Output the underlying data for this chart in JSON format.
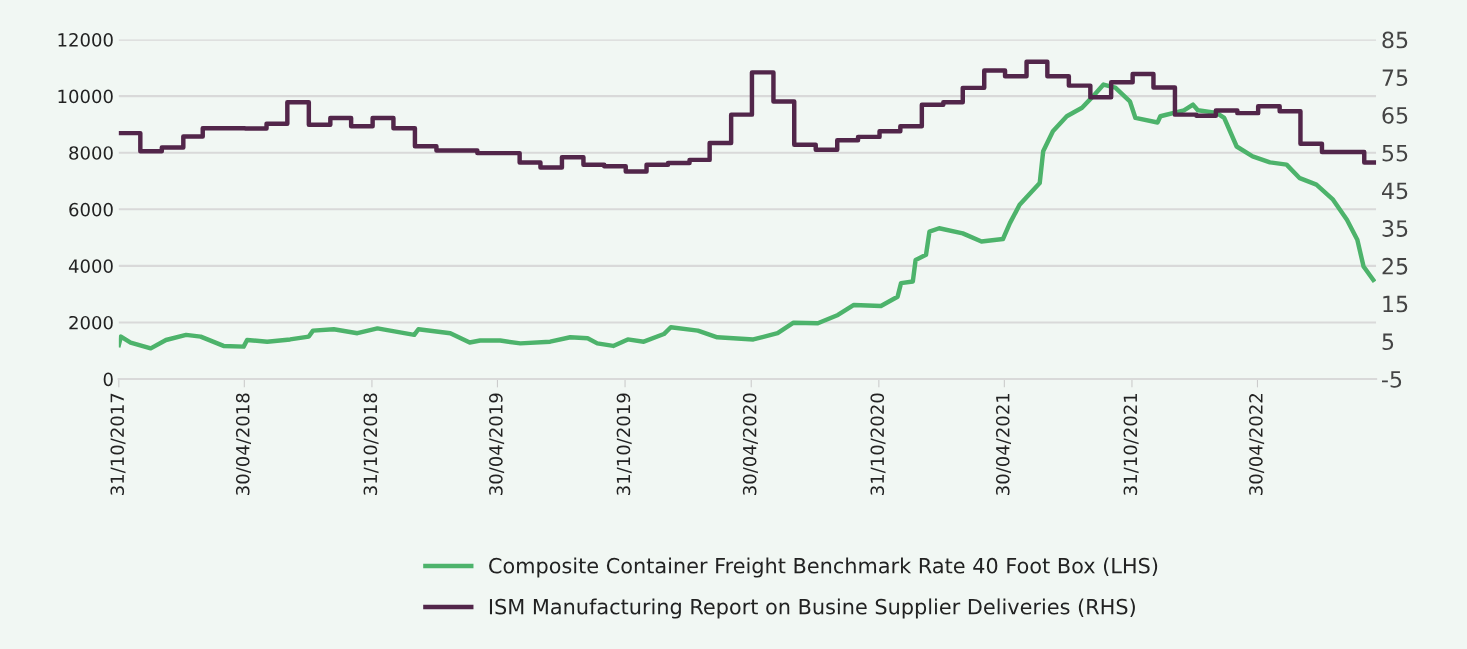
{
  "chart_data": {
    "type": "line",
    "xlim": [
      "2017-10-31",
      "2022-10-18"
    ],
    "xticks": [
      {
        "value": "2017-10-31",
        "label": "31/10/2017"
      },
      {
        "value": "2018-04-30",
        "label": "30/04/2018"
      },
      {
        "value": "2018-10-31",
        "label": "31/10/2018"
      },
      {
        "value": "2019-04-30",
        "label": "30/04/2019"
      },
      {
        "value": "2019-10-31",
        "label": "31/10/2019"
      },
      {
        "value": "2020-04-30",
        "label": "30/04/2020"
      },
      {
        "value": "2020-10-31",
        "label": "31/10/2020"
      },
      {
        "value": "2021-04-30",
        "label": "30/04/2021"
      },
      {
        "value": "2021-10-31",
        "label": "31/10/2021"
      },
      {
        "value": "2022-04-30",
        "label": "30/04/2022"
      }
    ],
    "ylim": [
      0,
      12000
    ],
    "yticks": [
      0,
      2000,
      4000,
      6000,
      8000,
      10000,
      12000
    ],
    "y2lim": [
      -5,
      85
    ],
    "y2ticks": [
      -5,
      5,
      15,
      25,
      35,
      45,
      55,
      65,
      75,
      85
    ],
    "grid": "y",
    "legend": "bottom",
    "series": [
      {
        "name": "Composite Container Freight Benchmark Rate 40 Foot Box (LHS)",
        "color": "#4db36b",
        "x": [
          "2017-10-31",
          "2017-11-03",
          "2017-11-17",
          "2017-12-16",
          "2018-01-07",
          "2018-02-05",
          "2018-02-26",
          "2018-03-31",
          "2018-04-29",
          "2018-05-04",
          "2018-06-02",
          "2018-07-05",
          "2018-08-01",
          "2018-08-07",
          "2018-09-06",
          "2018-10-10",
          "2018-11-08",
          "2018-12-31",
          "2019-01-06",
          "2019-02-21",
          "2019-03-21",
          "2019-04-05",
          "2019-05-04",
          "2019-06-02",
          "2019-07-15",
          "2019-08-13",
          "2019-09-07",
          "2019-09-21",
          "2019-10-14",
          "2019-11-04",
          "2019-11-27",
          "2019-12-26",
          "2020-01-05",
          "2020-02-13",
          "2020-03-12",
          "2020-05-03",
          "2020-06-07",
          "2020-06-30",
          "2020-08-04",
          "2020-09-02",
          "2020-09-25",
          "2020-11-03",
          "2020-11-27",
          "2020-12-02",
          "2020-12-19",
          "2020-12-23",
          "2021-01-07",
          "2021-01-12",
          "2021-01-26",
          "2021-03-01",
          "2021-03-28",
          "2021-04-28",
          "2021-05-08",
          "2021-05-22",
          "2021-06-20",
          "2021-06-25",
          "2021-07-09",
          "2021-07-29",
          "2021-08-20",
          "2021-09-05",
          "2021-09-20",
          "2021-10-07",
          "2021-10-28",
          "2021-11-05",
          "2021-12-07",
          "2021-12-11",
          "2022-01-14",
          "2022-01-27",
          "2022-02-03",
          "2022-03-02",
          "2022-03-13",
          "2022-03-31",
          "2022-04-23",
          "2022-05-18",
          "2022-06-11",
          "2022-06-30",
          "2022-07-24",
          "2022-08-17",
          "2022-09-06",
          "2022-09-21",
          "2022-09-30",
          "2022-10-14"
        ],
        "values": [
          1200,
          1500,
          1290,
          1085,
          1380,
          1560,
          1500,
          1170,
          1145,
          1380,
          1320,
          1400,
          1500,
          1710,
          1760,
          1620,
          1790,
          1560,
          1760,
          1620,
          1290,
          1360,
          1360,
          1260,
          1320,
          1475,
          1440,
          1260,
          1170,
          1400,
          1320,
          1590,
          1830,
          1710,
          1475,
          1400,
          1620,
          1990,
          1970,
          2265,
          2620,
          2580,
          2910,
          3390,
          3450,
          4210,
          4390,
          5210,
          5330,
          5150,
          4860,
          4950,
          5510,
          6160,
          6930,
          8050,
          8760,
          9290,
          9590,
          10000,
          10410,
          10300,
          9820,
          9230,
          9070,
          9290,
          9500,
          9700,
          9500,
          9410,
          9230,
          8220,
          7870,
          7660,
          7580,
          7100,
          6870,
          6340,
          5630,
          4920,
          3980,
          3500
        ]
      },
      {
        "name": "ISM Manufacturing Report on Busine Supplier Deliveries (RHS)",
        "color": "#52264a",
        "type": "step",
        "axis": "y2",
        "x": [
          "2017-11",
          "2017-12",
          "2018-01",
          "2018-02",
          "2018-03",
          "2018-04",
          "2018-05",
          "2018-06",
          "2018-07",
          "2018-08",
          "2018-09",
          "2018-10",
          "2018-11",
          "2018-12",
          "2019-01",
          "2019-02",
          "2019-03",
          "2019-04",
          "2019-05",
          "2019-06",
          "2019-07",
          "2019-08",
          "2019-09",
          "2019-10",
          "2019-11",
          "2019-12",
          "2020-01",
          "2020-02",
          "2020-03",
          "2020-04",
          "2020-05",
          "2020-06",
          "2020-07",
          "2020-08",
          "2020-09",
          "2020-10",
          "2020-11",
          "2020-12",
          "2021-01",
          "2021-02",
          "2021-03",
          "2021-04",
          "2021-05",
          "2021-06",
          "2021-07",
          "2021-08",
          "2021-09",
          "2021-10",
          "2021-11",
          "2021-12",
          "2022-01",
          "2022-02",
          "2022-03",
          "2022-04",
          "2022-05",
          "2022-06",
          "2022-07",
          "2022-08",
          "2022-09",
          "2022-10",
          "2022-10-18"
        ],
        "values": [
          60.2,
          55.4,
          56.4,
          59.3,
          61.5,
          61.5,
          61.4,
          62.7,
          68.4,
          62.4,
          64.2,
          62.0,
          64.2,
          61.5,
          56.7,
          55.6,
          55.6,
          54.9,
          54.9,
          52.4,
          51.1,
          53.8,
          51.8,
          51.4,
          50.0,
          51.8,
          52.3,
          53.1,
          57.6,
          65.1,
          76.3,
          68.6,
          57.1,
          55.8,
          58.3,
          59.2,
          60.7,
          62.0,
          67.7,
          68.4,
          72.2,
          76.8,
          75.3,
          79.1,
          75.3,
          72.8,
          69.7,
          73.7,
          75.9,
          72.3,
          65.1,
          64.8,
          66.2,
          65.5,
          67.3,
          66.0,
          57.4,
          55.2,
          55.2,
          52.4,
          52.4
        ]
      }
    ]
  }
}
